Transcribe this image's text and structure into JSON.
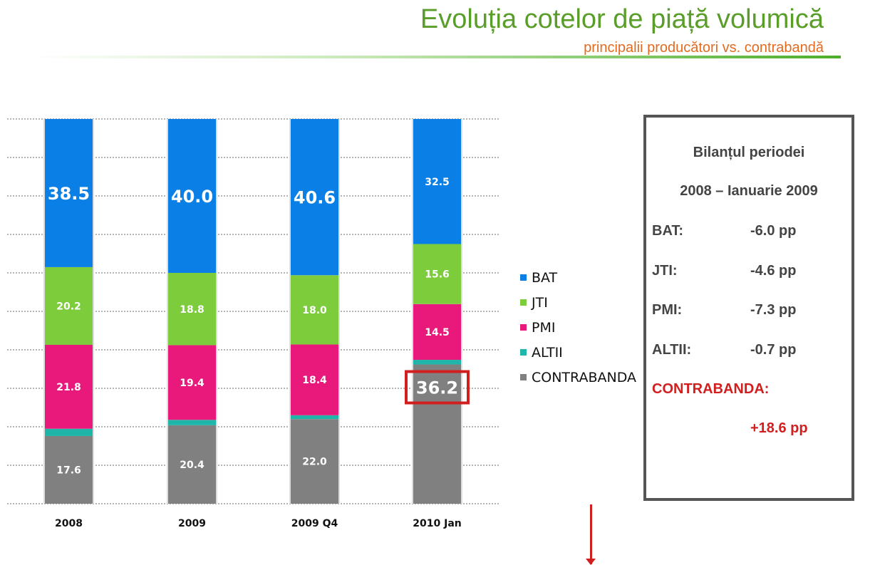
{
  "header": {
    "title": "Evoluția cotelor de piață volumică",
    "subtitle": "principalii producători vs. contrabandă"
  },
  "chart_data": {
    "type": "bar",
    "stacked": true,
    "categories": [
      "2008",
      "2009",
      "2009 Q4",
      "2010 Jan"
    ],
    "series": [
      {
        "name": "CONTRABANDA",
        "color": "#808080",
        "values": [
          17.6,
          20.4,
          22.0,
          36.2
        ],
        "labels": [
          "17.6",
          "20.4",
          "22.0",
          "36.2"
        ]
      },
      {
        "name": "ALTII",
        "color": "#1fb5a8",
        "values": [
          1.9,
          1.4,
          1.0,
          1.2
        ],
        "labels": [
          null,
          null,
          null,
          null
        ]
      },
      {
        "name": "PMI",
        "color": "#e8197a",
        "values": [
          21.8,
          19.4,
          18.4,
          14.5
        ],
        "labels": [
          "21.8",
          "19.4",
          "18.4",
          "14.5"
        ]
      },
      {
        "name": "JTI",
        "color": "#7ccc3c",
        "values": [
          20.2,
          18.8,
          18.0,
          15.6
        ],
        "labels": [
          "20.2",
          "18.8",
          "18.0",
          "15.6"
        ]
      },
      {
        "name": "BAT",
        "color": "#0a7fe6",
        "values": [
          38.5,
          40.0,
          40.6,
          32.5
        ],
        "labels": [
          "38.5",
          "40.0",
          "40.6",
          "32.5"
        ]
      }
    ],
    "large_labels": [
      "38.5",
      "40.0",
      "40.6"
    ],
    "highlighted_label": "36.2",
    "highlight_color": "#d11f1f",
    "ylim": [
      0,
      100
    ],
    "grid": true,
    "legend": [
      "BAT",
      "JTI",
      "PMI",
      "ALTII",
      "CONTRABANDA"
    ]
  },
  "summary": {
    "heading1": "Bilanțul periodei",
    "heading2": "2008 – Ianuarie 2009",
    "rows": [
      {
        "label": "BAT:",
        "value": "-6.0 pp"
      },
      {
        "label": "JTI:",
        "value": "-4.6 pp"
      },
      {
        "label": "PMI:",
        "value": "-7.3 pp"
      },
      {
        "label": "ALTII:",
        "value": "-0.7 pp"
      }
    ],
    "contraband_label": "CONTRABANDA:",
    "contraband_value": "+18.6 pp"
  }
}
